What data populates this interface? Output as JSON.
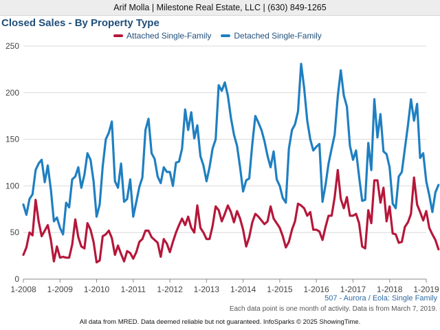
{
  "header": {
    "text": "Arif Molla | Milestone Real Estate, LLC | (630) 849-1265"
  },
  "colors": {
    "attached": "#b5173a",
    "detached": "#1f7fc1",
    "title": "#1f4e79",
    "grid": "#d9d9d9"
  },
  "chart_data": {
    "type": "line",
    "title": "Closed Sales - By Property Type",
    "xlabel": "",
    "ylabel": "",
    "ylim": [
      0,
      250
    ],
    "yticks": [
      0,
      50,
      100,
      150,
      200,
      250
    ],
    "xticks": [
      "1-2008",
      "1-2009",
      "1-2010",
      "1-2011",
      "1-2012",
      "1-2013",
      "1-2014",
      "1-2015",
      "1-2016",
      "1-2017",
      "1-2018",
      "1-2019"
    ],
    "start": "2008-01",
    "grid": true,
    "legend": "top",
    "series": [
      {
        "name": "Attached Single-Family",
        "values": [
          26,
          34,
          50,
          47,
          85,
          62,
          46,
          52,
          58,
          42,
          19,
          35,
          23,
          24,
          23,
          23,
          37,
          64,
          45,
          35,
          33,
          60,
          53,
          40,
          18,
          20,
          46,
          48,
          52,
          44,
          26,
          36,
          27,
          19,
          30,
          28,
          22,
          29,
          40,
          43,
          52,
          52,
          45,
          42,
          39,
          24,
          43,
          38,
          29,
          40,
          50,
          58,
          65,
          58,
          67,
          55,
          50,
          79,
          55,
          50,
          43,
          43,
          57,
          78,
          74,
          62,
          70,
          79,
          72,
          61,
          73,
          65,
          53,
          35,
          45,
          61,
          70,
          67,
          63,
          59,
          62,
          78,
          65,
          60,
          55,
          46,
          34,
          40,
          53,
          62,
          81,
          79,
          76,
          68,
          72,
          53,
          53,
          51,
          42,
          56,
          68,
          68,
          88,
          117,
          86,
          76,
          88,
          68,
          68,
          70,
          60,
          35,
          33,
          74,
          60,
          106,
          106,
          82,
          98,
          62,
          78,
          49,
          48,
          39,
          40,
          56,
          61,
          70,
          109,
          80,
          72,
          63,
          73,
          55,
          48,
          42,
          32
        ]
      },
      {
        "name": "Detached Single-Family",
        "values": [
          80,
          69,
          86,
          91,
          117,
          124,
          128,
          104,
          122,
          96,
          62,
          66,
          55,
          48,
          82,
          77,
          107,
          110,
          120,
          98,
          112,
          135,
          128,
          105,
          67,
          80,
          121,
          150,
          157,
          169,
          105,
          98,
          124,
          83,
          86,
          107,
          67,
          83,
          99,
          109,
          160,
          172,
          135,
          129,
          110,
          103,
          120,
          115,
          115,
          100,
          125,
          126,
          140,
          182,
          160,
          179,
          151,
          165,
          132,
          122,
          105,
          120,
          140,
          150,
          208,
          202,
          211,
          197,
          173,
          155,
          143,
          120,
          94,
          106,
          108,
          145,
          175,
          168,
          160,
          148,
          132,
          120,
          137,
          107,
          100,
          87,
          82,
          140,
          160,
          166,
          180,
          231,
          205,
          170,
          150,
          138,
          142,
          145,
          83,
          101,
          124,
          140,
          155,
          196,
          224,
          197,
          185,
          143,
          128,
          138,
          110,
          84,
          85,
          146,
          117,
          193,
          152,
          177,
          137,
          134,
          120,
          81,
          76,
          110,
          115,
          140,
          165,
          193,
          170,
          188,
          130,
          135,
          105,
          90,
          72,
          93,
          101
        ]
      }
    ]
  },
  "footnotes": {
    "region": "507 - Aurora / Eola: Single Family",
    "note": "Each data point is one month of activity. Data is from March 7, 2019.",
    "footer": "All data from MRED. Data deemed reliable but not guaranteed. InfoSparks © 2025 ShowingTime."
  }
}
